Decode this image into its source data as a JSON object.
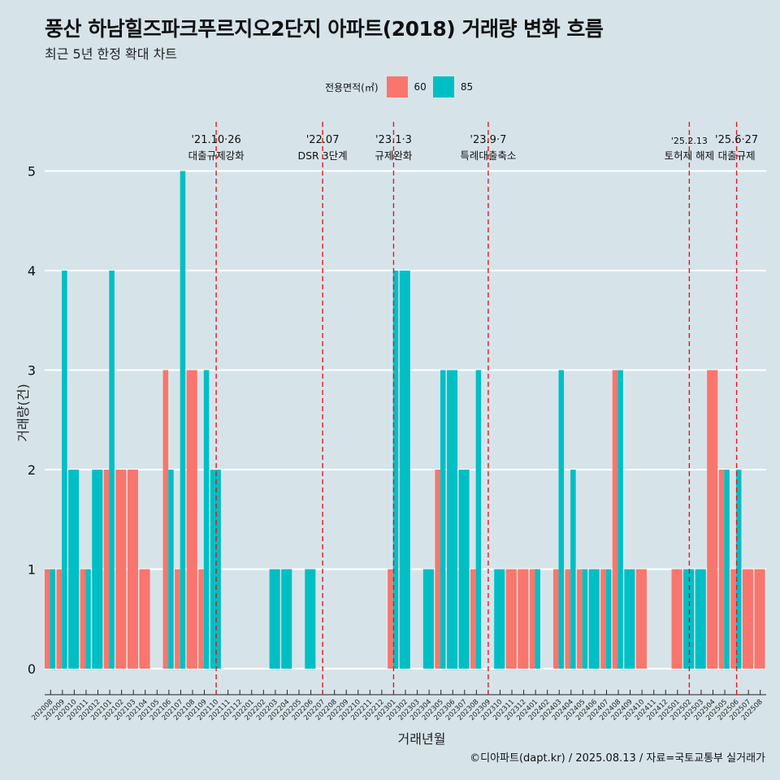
{
  "title": "풍산 하남힐즈파크푸르지오2단지 아파트(2018) 거래량 변화 흐름",
  "subtitle": "최근 5년 한정 확대 차트",
  "caption": "©디아파트(dapt.kr) / 2025.08.13 / 자료=국토교통부 실거래가",
  "legend": {
    "title": "전용면적(㎡)",
    "items": [
      {
        "label": "60",
        "color": "#f8766d"
      },
      {
        "label": "85",
        "color": "#00bfc4"
      }
    ]
  },
  "chart_data": {
    "type": "bar",
    "xlabel": "거래년월",
    "ylabel": "거래량(건)",
    "ylim": [
      0,
      5
    ],
    "yticks": [
      0,
      1,
      2,
      3,
      4,
      5
    ],
    "grid": true,
    "legend_position": "top",
    "categories": [
      "202008",
      "202009",
      "202010",
      "202011",
      "202012",
      "202101",
      "202102",
      "202103",
      "202104",
      "202105",
      "202106",
      "202107",
      "202108",
      "202109",
      "202110",
      "202111",
      "202112",
      "202201",
      "202202",
      "202203",
      "202204",
      "202205",
      "202206",
      "202207",
      "202208",
      "202209",
      "202210",
      "202211",
      "202212",
      "202301",
      "202302",
      "202303",
      "202304",
      "202305",
      "202306",
      "202307",
      "202308",
      "202309",
      "202310",
      "202311",
      "202312",
      "202401",
      "202402",
      "202403",
      "202404",
      "202405",
      "202406",
      "202407",
      "202408",
      "202409",
      "202410",
      "202411",
      "202412",
      "202501",
      "202502",
      "202503",
      "202504",
      "202505",
      "202506",
      "202507",
      "202508"
    ],
    "series": [
      {
        "name": "60",
        "color": "#f8766d",
        "values": [
          1,
          1,
          0,
          1,
          0,
          2,
          2,
          2,
          1,
          0,
          3,
          1,
          3,
          1,
          0,
          0,
          0,
          0,
          0,
          0,
          0,
          0,
          0,
          0,
          0,
          0,
          0,
          0,
          0,
          1,
          0,
          0,
          0,
          2,
          0,
          0,
          1,
          0,
          0,
          1,
          1,
          1,
          0,
          1,
          1,
          1,
          0,
          1,
          3,
          0,
          1,
          0,
          0,
          1,
          0,
          0,
          3,
          2,
          1,
          1,
          1
        ]
      },
      {
        "name": "85",
        "color": "#00bfc4",
        "values": [
          1,
          4,
          2,
          1,
          2,
          4,
          0,
          0,
          0,
          0,
          2,
          5,
          0,
          3,
          2,
          0,
          0,
          0,
          0,
          1,
          1,
          0,
          1,
          0,
          0,
          0,
          0,
          0,
          0,
          4,
          4,
          0,
          1,
          3,
          3,
          2,
          3,
          0,
          1,
          0,
          0,
          1,
          0,
          3,
          2,
          1,
          1,
          1,
          3,
          1,
          0,
          0,
          0,
          0,
          1,
          1,
          0,
          2,
          2,
          0,
          0
        ]
      }
    ],
    "annotations": [
      {
        "at": "202110",
        "date": "'21.10·26",
        "text": "대출규제강화"
      },
      {
        "at": "202207",
        "date": "'22.07",
        "text": "DSR 3단계"
      },
      {
        "at": "202301",
        "date": "'23.1·3",
        "text": "규제완화"
      },
      {
        "at": "202309",
        "date": "'23.9·7",
        "text": "특례대출축소"
      },
      {
        "at": "202502",
        "date": "'25.2.13",
        "text": "토허제 해제"
      },
      {
        "at": "202506",
        "date": "'25.6·27",
        "text": "대출규제"
      }
    ]
  }
}
